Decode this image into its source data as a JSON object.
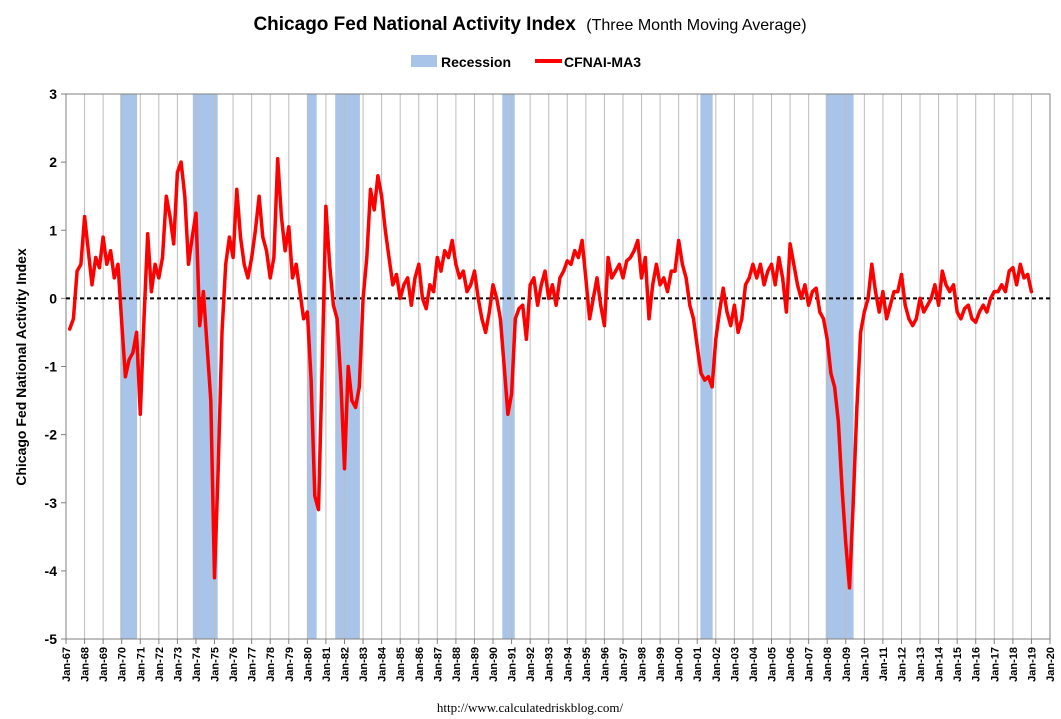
{
  "chart_data": {
    "type": "line",
    "title": "Chicago Fed National Activity Index",
    "subtitle": "(Three Month Moving Average)",
    "ylabel": "Chicago Fed National Activity Index",
    "xlabel": "",
    "ylim": [
      -5,
      3
    ],
    "yticks": [
      "3",
      "2",
      "1",
      "0",
      "-1",
      "-2",
      "-3",
      "-4",
      "-5"
    ],
    "xlim": [
      1967.0,
      2020.0
    ],
    "xticks": [
      "Jan-67",
      "Jan-68",
      "Jan-69",
      "Jan-70",
      "Jan-71",
      "Jan-72",
      "Jan-73",
      "Jan-74",
      "Jan-75",
      "Jan-76",
      "Jan-77",
      "Jan-78",
      "Jan-79",
      "Jan-80",
      "Jan-81",
      "Jan-82",
      "Jan-83",
      "Jan-84",
      "Jan-85",
      "Jan-86",
      "Jan-87",
      "Jan-88",
      "Jan-89",
      "Jan-90",
      "Jan-91",
      "Jan-92",
      "Jan-93",
      "Jan-94",
      "Jan-95",
      "Jan-96",
      "Jan-97",
      "Jan-98",
      "Jan-99",
      "Jan-00",
      "Jan-01",
      "Jan-02",
      "Jan-03",
      "Jan-04",
      "Jan-05",
      "Jan-06",
      "Jan-07",
      "Jan-08",
      "Jan-09",
      "Jan-10",
      "Jan-11",
      "Jan-12",
      "Jan-13",
      "Jan-14",
      "Jan-15",
      "Jan-16",
      "Jan-17",
      "Jan-18",
      "Jan-19",
      "Jan-20"
    ],
    "grid": "vertical",
    "legend_position": "top",
    "legend": [
      {
        "label": "Recession",
        "color": "#a8c4e8",
        "kind": "area"
      },
      {
        "label": "CFNAI-MA3",
        "color": "#ff0000",
        "kind": "line"
      }
    ],
    "recessions": [
      [
        1969.92,
        1970.83
      ],
      [
        1973.83,
        1975.17
      ],
      [
        1980.0,
        1980.5
      ],
      [
        1981.5,
        1982.83
      ],
      [
        1990.5,
        1991.17
      ],
      [
        2001.17,
        2001.83
      ],
      [
        2007.92,
        2009.42
      ]
    ],
    "series": [
      {
        "name": "CFNAI-MA3",
        "color": "#ff0000",
        "points": [
          [
            1967.2,
            -0.45
          ],
          [
            1967.4,
            -0.3
          ],
          [
            1967.6,
            0.4
          ],
          [
            1967.8,
            0.5
          ],
          [
            1968.0,
            1.2
          ],
          [
            1968.2,
            0.7
          ],
          [
            1968.4,
            0.2
          ],
          [
            1968.6,
            0.6
          ],
          [
            1968.8,
            0.45
          ],
          [
            1969.0,
            0.9
          ],
          [
            1969.2,
            0.5
          ],
          [
            1969.4,
            0.7
          ],
          [
            1969.6,
            0.3
          ],
          [
            1969.8,
            0.5
          ],
          [
            1970.0,
            -0.35
          ],
          [
            1970.2,
            -1.15
          ],
          [
            1970.4,
            -0.9
          ],
          [
            1970.6,
            -0.8
          ],
          [
            1970.8,
            -0.5
          ],
          [
            1971.0,
            -1.7
          ],
          [
            1971.2,
            -0.3
          ],
          [
            1971.4,
            0.95
          ],
          [
            1971.6,
            0.1
          ],
          [
            1971.8,
            0.5
          ],
          [
            1972.0,
            0.3
          ],
          [
            1972.2,
            0.6
          ],
          [
            1972.4,
            1.5
          ],
          [
            1972.6,
            1.2
          ],
          [
            1972.8,
            0.8
          ],
          [
            1973.0,
            1.85
          ],
          [
            1973.2,
            2.0
          ],
          [
            1973.4,
            1.5
          ],
          [
            1973.6,
            0.5
          ],
          [
            1973.8,
            0.9
          ],
          [
            1974.0,
            1.25
          ],
          [
            1974.2,
            -0.4
          ],
          [
            1974.4,
            0.1
          ],
          [
            1974.6,
            -0.7
          ],
          [
            1974.8,
            -1.5
          ],
          [
            1975.0,
            -4.1
          ],
          [
            1975.2,
            -2.5
          ],
          [
            1975.4,
            -0.5
          ],
          [
            1975.6,
            0.5
          ],
          [
            1975.8,
            0.9
          ],
          [
            1976.0,
            0.6
          ],
          [
            1976.2,
            1.6
          ],
          [
            1976.4,
            0.9
          ],
          [
            1976.6,
            0.5
          ],
          [
            1976.8,
            0.3
          ],
          [
            1977.0,
            0.6
          ],
          [
            1977.2,
            1.0
          ],
          [
            1977.4,
            1.5
          ],
          [
            1977.6,
            0.9
          ],
          [
            1977.8,
            0.7
          ],
          [
            1978.0,
            0.3
          ],
          [
            1978.2,
            0.6
          ],
          [
            1978.4,
            2.05
          ],
          [
            1978.6,
            1.2
          ],
          [
            1978.8,
            0.7
          ],
          [
            1979.0,
            1.05
          ],
          [
            1979.2,
            0.3
          ],
          [
            1979.4,
            0.5
          ],
          [
            1979.6,
            0.1
          ],
          [
            1979.8,
            -0.3
          ],
          [
            1980.0,
            -0.2
          ],
          [
            1980.2,
            -1.2
          ],
          [
            1980.4,
            -2.9
          ],
          [
            1980.6,
            -3.1
          ],
          [
            1980.8,
            -1.0
          ],
          [
            1981.0,
            1.35
          ],
          [
            1981.2,
            0.5
          ],
          [
            1981.4,
            -0.1
          ],
          [
            1981.6,
            -0.3
          ],
          [
            1981.8,
            -1.2
          ],
          [
            1982.0,
            -2.5
          ],
          [
            1982.2,
            -1.0
          ],
          [
            1982.4,
            -1.5
          ],
          [
            1982.6,
            -1.6
          ],
          [
            1982.8,
            -1.3
          ],
          [
            1983.0,
            0.0
          ],
          [
            1983.2,
            0.6
          ],
          [
            1983.4,
            1.6
          ],
          [
            1983.6,
            1.3
          ],
          [
            1983.8,
            1.8
          ],
          [
            1984.0,
            1.5
          ],
          [
            1984.2,
            1.0
          ],
          [
            1984.4,
            0.6
          ],
          [
            1984.6,
            0.2
          ],
          [
            1984.8,
            0.35
          ],
          [
            1985.0,
            0.0
          ],
          [
            1985.2,
            0.2
          ],
          [
            1985.4,
            0.3
          ],
          [
            1985.6,
            -0.1
          ],
          [
            1985.8,
            0.3
          ],
          [
            1986.0,
            0.5
          ],
          [
            1986.2,
            0.0
          ],
          [
            1986.4,
            -0.15
          ],
          [
            1986.6,
            0.2
          ],
          [
            1986.8,
            0.1
          ],
          [
            1987.0,
            0.6
          ],
          [
            1987.2,
            0.4
          ],
          [
            1987.4,
            0.7
          ],
          [
            1987.6,
            0.6
          ],
          [
            1987.8,
            0.85
          ],
          [
            1988.0,
            0.5
          ],
          [
            1988.2,
            0.3
          ],
          [
            1988.4,
            0.4
          ],
          [
            1988.6,
            0.1
          ],
          [
            1988.8,
            0.2
          ],
          [
            1989.0,
            0.4
          ],
          [
            1989.2,
            0.0
          ],
          [
            1989.4,
            -0.3
          ],
          [
            1989.6,
            -0.5
          ],
          [
            1989.8,
            -0.2
          ],
          [
            1990.0,
            0.2
          ],
          [
            1990.2,
            0.0
          ],
          [
            1990.4,
            -0.3
          ],
          [
            1990.6,
            -1.0
          ],
          [
            1990.8,
            -1.7
          ],
          [
            1991.0,
            -1.4
          ],
          [
            1991.2,
            -0.3
          ],
          [
            1991.4,
            -0.15
          ],
          [
            1991.6,
            -0.1
          ],
          [
            1991.8,
            -0.6
          ],
          [
            1992.0,
            0.2
          ],
          [
            1992.2,
            0.3
          ],
          [
            1992.4,
            -0.1
          ],
          [
            1992.6,
            0.2
          ],
          [
            1992.8,
            0.4
          ],
          [
            1993.0,
            0.0
          ],
          [
            1993.2,
            0.2
          ],
          [
            1993.4,
            -0.1
          ],
          [
            1993.6,
            0.3
          ],
          [
            1993.8,
            0.4
          ],
          [
            1994.0,
            0.55
          ],
          [
            1994.2,
            0.5
          ],
          [
            1994.4,
            0.7
          ],
          [
            1994.6,
            0.6
          ],
          [
            1994.8,
            0.85
          ],
          [
            1995.0,
            0.3
          ],
          [
            1995.2,
            -0.3
          ],
          [
            1995.4,
            0.0
          ],
          [
            1995.6,
            0.3
          ],
          [
            1995.8,
            -0.1
          ],
          [
            1996.0,
            -0.4
          ],
          [
            1996.2,
            0.6
          ],
          [
            1996.4,
            0.3
          ],
          [
            1996.6,
            0.4
          ],
          [
            1996.8,
            0.5
          ],
          [
            1997.0,
            0.3
          ],
          [
            1997.2,
            0.55
          ],
          [
            1997.4,
            0.6
          ],
          [
            1997.6,
            0.7
          ],
          [
            1997.8,
            0.85
          ],
          [
            1998.0,
            0.3
          ],
          [
            1998.2,
            0.6
          ],
          [
            1998.4,
            -0.3
          ],
          [
            1998.6,
            0.2
          ],
          [
            1998.8,
            0.5
          ],
          [
            1999.0,
            0.2
          ],
          [
            1999.2,
            0.3
          ],
          [
            1999.4,
            0.1
          ],
          [
            1999.6,
            0.4
          ],
          [
            1999.8,
            0.4
          ],
          [
            2000.0,
            0.85
          ],
          [
            2000.2,
            0.5
          ],
          [
            2000.4,
            0.3
          ],
          [
            2000.6,
            -0.1
          ],
          [
            2000.8,
            -0.3
          ],
          [
            2001.0,
            -0.7
          ],
          [
            2001.2,
            -1.1
          ],
          [
            2001.4,
            -1.2
          ],
          [
            2001.6,
            -1.15
          ],
          [
            2001.8,
            -1.3
          ],
          [
            2002.0,
            -0.6
          ],
          [
            2002.2,
            -0.2
          ],
          [
            2002.4,
            0.15
          ],
          [
            2002.6,
            -0.2
          ],
          [
            2002.8,
            -0.4
          ],
          [
            2003.0,
            -0.1
          ],
          [
            2003.2,
            -0.5
          ],
          [
            2003.4,
            -0.3
          ],
          [
            2003.6,
            0.2
          ],
          [
            2003.8,
            0.3
          ],
          [
            2004.0,
            0.5
          ],
          [
            2004.2,
            0.3
          ],
          [
            2004.4,
            0.5
          ],
          [
            2004.6,
            0.2
          ],
          [
            2004.8,
            0.4
          ],
          [
            2005.0,
            0.5
          ],
          [
            2005.2,
            0.2
          ],
          [
            2005.4,
            0.6
          ],
          [
            2005.6,
            0.3
          ],
          [
            2005.8,
            -0.2
          ],
          [
            2006.0,
            0.8
          ],
          [
            2006.2,
            0.5
          ],
          [
            2006.4,
            0.2
          ],
          [
            2006.6,
            0.0
          ],
          [
            2006.8,
            0.2
          ],
          [
            2007.0,
            -0.1
          ],
          [
            2007.2,
            0.1
          ],
          [
            2007.4,
            0.15
          ],
          [
            2007.6,
            -0.2
          ],
          [
            2007.8,
            -0.3
          ],
          [
            2008.0,
            -0.6
          ],
          [
            2008.2,
            -1.1
          ],
          [
            2008.4,
            -1.3
          ],
          [
            2008.6,
            -1.8
          ],
          [
            2008.8,
            -2.8
          ],
          [
            2009.0,
            -3.6
          ],
          [
            2009.2,
            -4.25
          ],
          [
            2009.4,
            -3.0
          ],
          [
            2009.6,
            -1.6
          ],
          [
            2009.8,
            -0.5
          ],
          [
            2010.0,
            -0.2
          ],
          [
            2010.2,
            0.0
          ],
          [
            2010.4,
            0.5
          ],
          [
            2010.6,
            0.1
          ],
          [
            2010.8,
            -0.2
          ],
          [
            2011.0,
            0.1
          ],
          [
            2011.2,
            -0.3
          ],
          [
            2011.4,
            -0.1
          ],
          [
            2011.6,
            0.1
          ],
          [
            2011.8,
            0.1
          ],
          [
            2012.0,
            0.35
          ],
          [
            2012.2,
            -0.1
          ],
          [
            2012.4,
            -0.3
          ],
          [
            2012.6,
            -0.4
          ],
          [
            2012.8,
            -0.3
          ],
          [
            2013.0,
            0.0
          ],
          [
            2013.2,
            -0.2
          ],
          [
            2013.4,
            -0.1
          ],
          [
            2013.6,
            0.0
          ],
          [
            2013.8,
            0.2
          ],
          [
            2014.0,
            -0.1
          ],
          [
            2014.2,
            0.4
          ],
          [
            2014.4,
            0.2
          ],
          [
            2014.6,
            0.1
          ],
          [
            2014.8,
            0.2
          ],
          [
            2015.0,
            -0.2
          ],
          [
            2015.2,
            -0.3
          ],
          [
            2015.4,
            -0.15
          ],
          [
            2015.6,
            -0.1
          ],
          [
            2015.8,
            -0.3
          ],
          [
            2016.0,
            -0.35
          ],
          [
            2016.2,
            -0.2
          ],
          [
            2016.4,
            -0.1
          ],
          [
            2016.6,
            -0.2
          ],
          [
            2016.8,
            0.0
          ],
          [
            2017.0,
            0.1
          ],
          [
            2017.2,
            0.1
          ],
          [
            2017.4,
            0.2
          ],
          [
            2017.6,
            0.1
          ],
          [
            2017.8,
            0.4
          ],
          [
            2018.0,
            0.45
          ],
          [
            2018.2,
            0.2
          ],
          [
            2018.4,
            0.5
          ],
          [
            2018.6,
            0.3
          ],
          [
            2018.8,
            0.35
          ],
          [
            2019.0,
            0.1
          ]
        ]
      }
    ]
  },
  "footer": {
    "source_url": "http://www.calculatedriskblog.com/"
  }
}
